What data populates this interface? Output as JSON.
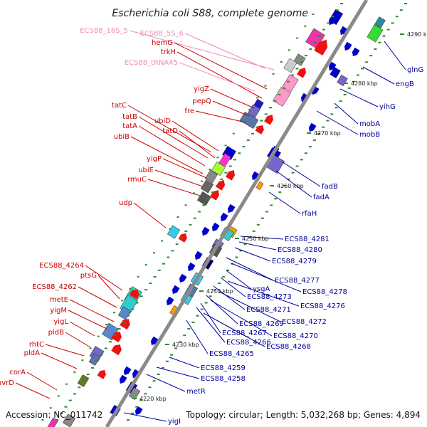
{
  "title": "Escherichia coli S88, complete genome",
  "footer": {
    "accession": "Accession: NC_011742",
    "topology": "Topology: circular; Length: 5,032,268 bp; Genes: 4,894"
  },
  "colors": {
    "axis": "#8a8a8a",
    "ticks": "#2e8b2e",
    "label_left": "#cc0000",
    "label_right": "#00009e",
    "label_rna": "#f08cb4"
  },
  "kbp_markers": [
    "4290 kbp",
    "4280 kbp",
    "4270 kbp",
    "4260 kbp",
    "4250 kbp",
    "4240 kbp",
    "4230 kbp",
    "4220 kbp"
  ],
  "left_labels": [
    {
      "text": "ECS88_16S_5",
      "kind": "rna"
    },
    {
      "text": "ECS88_5S_6",
      "kind": "rna"
    },
    {
      "text": "hemG",
      "kind": "gene"
    },
    {
      "text": "trkH",
      "kind": "gene"
    },
    {
      "text": "ECS88_tRNA45",
      "kind": "rna"
    },
    {
      "text": "yigZ",
      "kind": "gene"
    },
    {
      "text": "pepQ",
      "kind": "gene"
    },
    {
      "text": "fre",
      "kind": "gene"
    },
    {
      "text": "tatC",
      "kind": "gene"
    },
    {
      "text": "tatB",
      "kind": "gene"
    },
    {
      "text": "tatA",
      "kind": "gene"
    },
    {
      "text": "ubiB",
      "kind": "gene"
    },
    {
      "text": "ubiD",
      "kind": "gene"
    },
    {
      "text": "tatD",
      "kind": "gene"
    },
    {
      "text": "yigP",
      "kind": "gene"
    },
    {
      "text": "ubiE",
      "kind": "gene"
    },
    {
      "text": "rmuC",
      "kind": "gene"
    },
    {
      "text": "udp",
      "kind": "gene"
    },
    {
      "text": "ECS88_4264",
      "kind": "gene"
    },
    {
      "text": "ptsG",
      "kind": "gene"
    },
    {
      "text": "ECS88_4262",
      "kind": "gene"
    },
    {
      "text": "metE",
      "kind": "gene"
    },
    {
      "text": "yigM",
      "kind": "gene"
    },
    {
      "text": "yigL",
      "kind": "gene"
    },
    {
      "text": "pldB",
      "kind": "gene"
    },
    {
      "text": "rhtC",
      "kind": "gene"
    },
    {
      "text": "pldA",
      "kind": "gene"
    },
    {
      "text": "corA",
      "kind": "gene"
    },
    {
      "text": "uvrD",
      "kind": "gene"
    }
  ],
  "right_labels": [
    "glnG",
    "engB",
    "yihG",
    "mobA",
    "mobB",
    "fadB",
    "fadA",
    "rfaH",
    "ECS88_4281",
    "ECS88_4280",
    "ECS88_4279",
    "ECS88_4277",
    "ECS88_4278",
    "ysgA",
    "ECS88_4273",
    "ECS88_4276",
    "ECS88_4271",
    "ECS88_4272",
    "ECS88_4269",
    "ECS88_4270",
    "ECS88_4267",
    "ECS88_4266",
    "ECS88_4268",
    "ECS88_4265",
    "ECS88_4259",
    "ECS88_4258",
    "metR",
    "yigI"
  ]
}
